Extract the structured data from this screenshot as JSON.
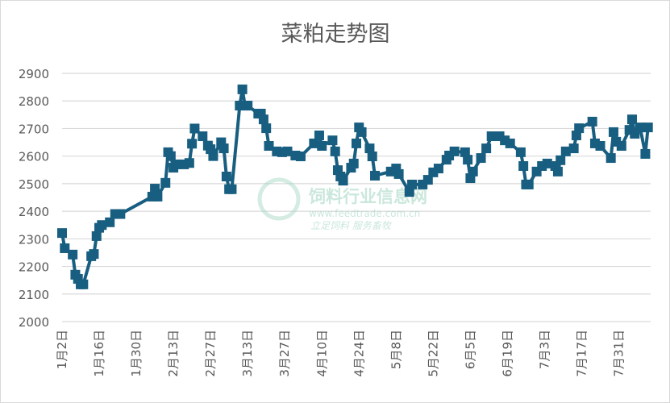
{
  "chart_data": {
    "type": "line",
    "title": "菜粕走势图",
    "xlabel": "",
    "ylabel": "",
    "ylim": [
      2000,
      2900
    ],
    "yticks": [
      2000,
      2100,
      2200,
      2300,
      2400,
      2500,
      2600,
      2700,
      2800,
      2900
    ],
    "xlim": [
      "01-02",
      "08-12"
    ],
    "xtick_labels": [
      "1月2日",
      "1月16日",
      "1月30日",
      "2月13日",
      "2月27日",
      "3月13日",
      "3月27日",
      "4月10日",
      "4月24日",
      "5月8日",
      "5月22日",
      "6月5日",
      "6月19日",
      "7月3日",
      "7月17日",
      "7月31日"
    ],
    "xtick_dates": [
      "01-02",
      "01-16",
      "01-30",
      "02-13",
      "02-27",
      "03-13",
      "03-27",
      "04-10",
      "04-24",
      "05-08",
      "05-22",
      "06-05",
      "06-19",
      "07-03",
      "07-17",
      "07-31"
    ],
    "grid": true,
    "legend": "none",
    "line_color": "#185e80",
    "marker": "square",
    "series": [
      {
        "x": [
          "01-02",
          "01-03",
          "01-06",
          "01-07",
          "01-08",
          "01-09",
          "01-10",
          "01-13",
          "01-14",
          "01-15",
          "01-16",
          "01-17",
          "01-20",
          "01-22",
          "01-24",
          "02-05",
          "02-06",
          "02-07",
          "02-10",
          "02-11",
          "02-12",
          "02-13",
          "02-14",
          "02-17",
          "02-19",
          "02-20",
          "02-21",
          "02-24",
          "02-26",
          "02-27",
          "02-28",
          "03-03",
          "03-04",
          "03-05",
          "03-06",
          "03-07",
          "03-10",
          "03-11",
          "03-12",
          "03-13",
          "03-17",
          "03-18",
          "03-19",
          "03-20",
          "03-21",
          "03-24",
          "03-26",
          "03-28",
          "03-31",
          "04-02",
          "04-07",
          "04-09",
          "04-10",
          "04-14",
          "04-15",
          "04-16",
          "04-17",
          "04-18",
          "04-21",
          "04-22",
          "04-23",
          "04-24",
          "04-25",
          "04-28",
          "04-29",
          "04-30",
          "05-06",
          "05-08",
          "05-09",
          "05-13",
          "05-14",
          "05-18",
          "05-20",
          "05-22",
          "05-24",
          "05-27",
          "05-28",
          "05-30",
          "06-03",
          "06-04",
          "06-05",
          "06-06",
          "06-09",
          "06-11",
          "06-13",
          "06-16",
          "06-18",
          "06-20",
          "06-24",
          "06-25",
          "06-26",
          "06-27",
          "06-30",
          "07-02",
          "07-04",
          "07-07",
          "07-08",
          "07-09",
          "07-11",
          "07-14",
          "07-15",
          "07-16",
          "07-21",
          "07-22",
          "07-24",
          "07-28",
          "07-29",
          "07-30",
          "08-01",
          "08-04",
          "08-05",
          "08-06",
          "08-08",
          "08-10",
          "08-11"
        ],
        "values": [
          2321,
          2266,
          2243,
          2170,
          2155,
          2135,
          2135,
          2237,
          2245,
          2310,
          2340,
          2350,
          2360,
          2390,
          2390,
          2453,
          2482,
          2453,
          2503,
          2614,
          2600,
          2558,
          2570,
          2570,
          2575,
          2645,
          2700,
          2672,
          2638,
          2625,
          2600,
          2650,
          2628,
          2526,
          2480,
          2480,
          2783,
          2842,
          2783,
          2783,
          2754,
          2754,
          2733,
          2701,
          2637,
          2617,
          2614,
          2617,
          2602,
          2599,
          2646,
          2675,
          2637,
          2657,
          2617,
          2549,
          2526,
          2511,
          2558,
          2573,
          2646,
          2704,
          2687,
          2628,
          2599,
          2529,
          2544,
          2555,
          2535,
          2470,
          2497,
          2497,
          2514,
          2541,
          2555,
          2587,
          2602,
          2617,
          2614,
          2587,
          2520,
          2544,
          2593,
          2628,
          2672,
          2672,
          2657,
          2646,
          2614,
          2564,
          2497,
          2497,
          2544,
          2564,
          2573,
          2564,
          2544,
          2585,
          2617,
          2628,
          2675,
          2701,
          2725,
          2646,
          2637,
          2593,
          2687,
          2652,
          2637,
          2695,
          2733,
          2681,
          2704,
          2608,
          2704
        ]
      }
    ]
  },
  "watermark": {
    "name": "饲料行业信息网",
    "url": "www.feedtrade.com.cn",
    "slogan": "立足饲料   服务畜牧",
    "color": "#9fd4bf"
  }
}
